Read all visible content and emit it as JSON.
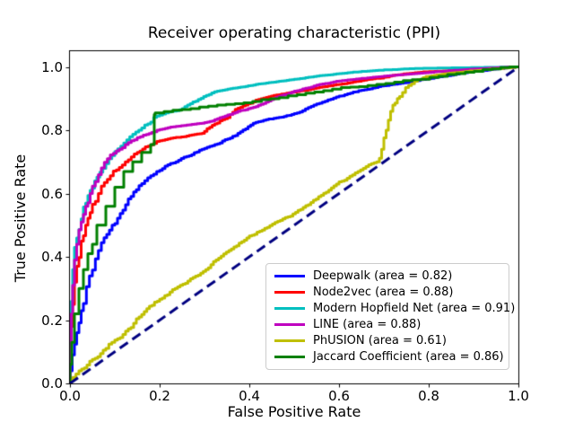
{
  "figure": {
    "background": "#ffffff",
    "axis_color": "#000000",
    "diagonal_color": "#000080"
  },
  "chart_data": {
    "type": "line",
    "title": "Receiver operating characteristic (PPI)",
    "xlabel": "False Positive Rate",
    "ylabel": "True Positive Rate",
    "xlim": [
      0.0,
      1.0
    ],
    "ylim": [
      0.0,
      1.05
    ],
    "grid": false,
    "legend_position": "lower right",
    "xticks": {
      "values": [
        0.0,
        0.2,
        0.4,
        0.6,
        0.8,
        1.0
      ],
      "labels": [
        "0.0",
        "0.2",
        "0.4",
        "0.6",
        "0.8",
        "1.0"
      ]
    },
    "yticks": {
      "values": [
        0.0,
        0.2,
        0.4,
        0.6,
        0.8,
        1.0
      ],
      "labels": [
        "0.0",
        "0.2",
        "0.4",
        "0.6",
        "0.8",
        "1.0"
      ]
    },
    "series": [
      {
        "name": "deepwalk",
        "label": "Deepwalk (area = 0.82)",
        "area": 0.82,
        "color": "#0000ff",
        "line_width": 3,
        "line_style": "solid",
        "render": "steps",
        "step_dx": 0.006,
        "in_legend": true,
        "points": [
          [
            0,
            0
          ],
          [
            0.005,
            0.04
          ],
          [
            0.01,
            0.09
          ],
          [
            0.02,
            0.16
          ],
          [
            0.03,
            0.23
          ],
          [
            0.05,
            0.34
          ],
          [
            0.07,
            0.42
          ],
          [
            0.1,
            0.5
          ],
          [
            0.13,
            0.565
          ],
          [
            0.16,
            0.625
          ],
          [
            0.18,
            0.65
          ],
          [
            0.2,
            0.67
          ],
          [
            0.23,
            0.695
          ],
          [
            0.26,
            0.715
          ],
          [
            0.3,
            0.74
          ],
          [
            0.34,
            0.76
          ],
          [
            0.38,
            0.79
          ],
          [
            0.42,
            0.825
          ],
          [
            0.46,
            0.838
          ],
          [
            0.5,
            0.85
          ],
          [
            0.55,
            0.88
          ],
          [
            0.6,
            0.905
          ],
          [
            0.65,
            0.925
          ],
          [
            0.7,
            0.94
          ],
          [
            0.75,
            0.95
          ],
          [
            0.8,
            0.962
          ],
          [
            0.85,
            0.973
          ],
          [
            0.9,
            0.985
          ],
          [
            0.95,
            0.993
          ],
          [
            1,
            1
          ]
        ]
      },
      {
        "name": "node2vec",
        "label": "Node2vec (area = 0.88)",
        "area": 0.88,
        "color": "#ff0000",
        "line_width": 3,
        "line_style": "solid",
        "render": "steps",
        "step_dx": 0.006,
        "in_legend": true,
        "points": [
          [
            0,
            0
          ],
          [
            0.003,
            0.1
          ],
          [
            0.006,
            0.18
          ],
          [
            0.01,
            0.25
          ],
          [
            0.015,
            0.32
          ],
          [
            0.02,
            0.37
          ],
          [
            0.03,
            0.45
          ],
          [
            0.04,
            0.5
          ],
          [
            0.05,
            0.54
          ],
          [
            0.07,
            0.6
          ],
          [
            0.09,
            0.645
          ],
          [
            0.11,
            0.675
          ],
          [
            0.13,
            0.7
          ],
          [
            0.15,
            0.725
          ],
          [
            0.18,
            0.75
          ],
          [
            0.2,
            0.765
          ],
          [
            0.23,
            0.775
          ],
          [
            0.26,
            0.78
          ],
          [
            0.3,
            0.79
          ],
          [
            0.34,
            0.83
          ],
          [
            0.38,
            0.87
          ],
          [
            0.42,
            0.895
          ],
          [
            0.46,
            0.91
          ],
          [
            0.5,
            0.92
          ],
          [
            0.55,
            0.932
          ],
          [
            0.6,
            0.944
          ],
          [
            0.65,
            0.955
          ],
          [
            0.7,
            0.965
          ],
          [
            0.75,
            0.978
          ],
          [
            0.8,
            0.985
          ],
          [
            0.85,
            0.988
          ],
          [
            0.9,
            0.99
          ],
          [
            0.95,
            0.995
          ],
          [
            1,
            1
          ]
        ]
      },
      {
        "name": "modern-hopfield-net",
        "label": "Modern Hopfield Net (area = 0.91)",
        "area": 0.91,
        "color": "#00bfbf",
        "line_width": 3,
        "line_style": "solid",
        "render": "steps",
        "step_dx": 0.006,
        "in_legend": true,
        "points": [
          [
            0,
            0
          ],
          [
            0.003,
            0.14
          ],
          [
            0.006,
            0.26
          ],
          [
            0.01,
            0.36
          ],
          [
            0.015,
            0.43
          ],
          [
            0.02,
            0.46
          ],
          [
            0.03,
            0.52
          ],
          [
            0.04,
            0.57
          ],
          [
            0.05,
            0.61
          ],
          [
            0.06,
            0.64
          ],
          [
            0.08,
            0.68
          ],
          [
            0.1,
            0.72
          ],
          [
            0.12,
            0.75
          ],
          [
            0.14,
            0.78
          ],
          [
            0.16,
            0.8
          ],
          [
            0.18,
            0.82
          ],
          [
            0.2,
            0.845
          ],
          [
            0.22,
            0.855
          ],
          [
            0.25,
            0.865
          ],
          [
            0.28,
            0.89
          ],
          [
            0.31,
            0.91
          ],
          [
            0.34,
            0.925
          ],
          [
            0.38,
            0.935
          ],
          [
            0.42,
            0.945
          ],
          [
            0.46,
            0.952
          ],
          [
            0.5,
            0.96
          ],
          [
            0.55,
            0.97
          ],
          [
            0.6,
            0.978
          ],
          [
            0.65,
            0.985
          ],
          [
            0.7,
            0.99
          ],
          [
            0.75,
            0.994
          ],
          [
            0.8,
            0.996
          ],
          [
            0.85,
            0.997
          ],
          [
            0.9,
            0.998
          ],
          [
            1,
            1
          ]
        ]
      },
      {
        "name": "line",
        "label": "LINE (area = 0.88)",
        "area": 0.88,
        "color": "#bf00bf",
        "line_width": 3,
        "line_style": "solid",
        "render": "steps",
        "step_dx": 0.006,
        "in_legend": true,
        "points": [
          [
            0,
            0
          ],
          [
            0.003,
            0.12
          ],
          [
            0.006,
            0.22
          ],
          [
            0.01,
            0.31
          ],
          [
            0.015,
            0.39
          ],
          [
            0.02,
            0.44
          ],
          [
            0.03,
            0.51
          ],
          [
            0.04,
            0.56
          ],
          [
            0.05,
            0.6
          ],
          [
            0.07,
            0.66
          ],
          [
            0.09,
            0.71
          ],
          [
            0.11,
            0.735
          ],
          [
            0.13,
            0.755
          ],
          [
            0.15,
            0.77
          ],
          [
            0.17,
            0.785
          ],
          [
            0.2,
            0.8
          ],
          [
            0.23,
            0.81
          ],
          [
            0.26,
            0.815
          ],
          [
            0.3,
            0.822
          ],
          [
            0.34,
            0.84
          ],
          [
            0.38,
            0.86
          ],
          [
            0.42,
            0.875
          ],
          [
            0.46,
            0.9
          ],
          [
            0.5,
            0.92
          ],
          [
            0.55,
            0.94
          ],
          [
            0.6,
            0.955
          ],
          [
            0.65,
            0.963
          ],
          [
            0.7,
            0.97
          ],
          [
            0.75,
            0.976
          ],
          [
            0.8,
            0.982
          ],
          [
            0.85,
            0.988
          ],
          [
            0.9,
            0.993
          ],
          [
            0.95,
            0.997
          ],
          [
            1,
            1
          ]
        ]
      },
      {
        "name": "phusion",
        "label": "PhUSION (area = 0.61)",
        "area": 0.61,
        "color": "#bfbf00",
        "line_width": 3,
        "line_style": "solid",
        "render": "steps",
        "step_dx": 0.006,
        "in_legend": true,
        "points": [
          [
            0,
            0
          ],
          [
            0.02,
            0.03
          ],
          [
            0.05,
            0.07
          ],
          [
            0.08,
            0.105
          ],
          [
            0.1,
            0.13
          ],
          [
            0.13,
            0.165
          ],
          [
            0.16,
            0.21
          ],
          [
            0.2,
            0.26
          ],
          [
            0.24,
            0.3
          ],
          [
            0.28,
            0.335
          ],
          [
            0.32,
            0.375
          ],
          [
            0.36,
            0.42
          ],
          [
            0.4,
            0.46
          ],
          [
            0.44,
            0.49
          ],
          [
            0.48,
            0.52
          ],
          [
            0.52,
            0.55
          ],
          [
            0.56,
            0.59
          ],
          [
            0.6,
            0.63
          ],
          [
            0.63,
            0.655
          ],
          [
            0.66,
            0.68
          ],
          [
            0.69,
            0.7
          ],
          [
            0.7,
            0.74
          ],
          [
            0.71,
            0.8
          ],
          [
            0.72,
            0.86
          ],
          [
            0.735,
            0.9
          ],
          [
            0.755,
            0.935
          ],
          [
            0.775,
            0.955
          ],
          [
            0.8,
            0.97
          ],
          [
            0.84,
            0.978
          ],
          [
            0.88,
            0.984
          ],
          [
            0.92,
            0.99
          ],
          [
            0.96,
            0.995
          ],
          [
            1,
            1
          ]
        ]
      },
      {
        "name": "jaccard-coefficient",
        "label": "Jaccard Coefficient (area = 0.86)",
        "area": 0.86,
        "color": "#008000",
        "line_width": 3,
        "line_style": "solid",
        "render": "steps",
        "step_dx": 0.02,
        "in_legend": true,
        "points": [
          [
            0,
            0
          ],
          [
            0.004,
            0.06
          ],
          [
            0.01,
            0.13
          ],
          [
            0.02,
            0.22
          ],
          [
            0.03,
            0.3
          ],
          [
            0.04,
            0.36
          ],
          [
            0.05,
            0.41
          ],
          [
            0.06,
            0.44
          ],
          [
            0.08,
            0.5
          ],
          [
            0.1,
            0.56
          ],
          [
            0.12,
            0.62
          ],
          [
            0.14,
            0.67
          ],
          [
            0.16,
            0.7
          ],
          [
            0.18,
            0.73
          ],
          [
            0.188,
            0.755
          ],
          [
            0.19,
            0.85
          ],
          [
            1,
            1
          ]
        ]
      },
      {
        "name": "chance-diagonal",
        "label": "",
        "area": null,
        "color": "#000080",
        "line_width": 3,
        "line_style": "dashed",
        "render": "straight",
        "step_dx": 1,
        "in_legend": false,
        "points": [
          [
            0,
            0
          ],
          [
            1,
            1
          ]
        ]
      }
    ]
  }
}
